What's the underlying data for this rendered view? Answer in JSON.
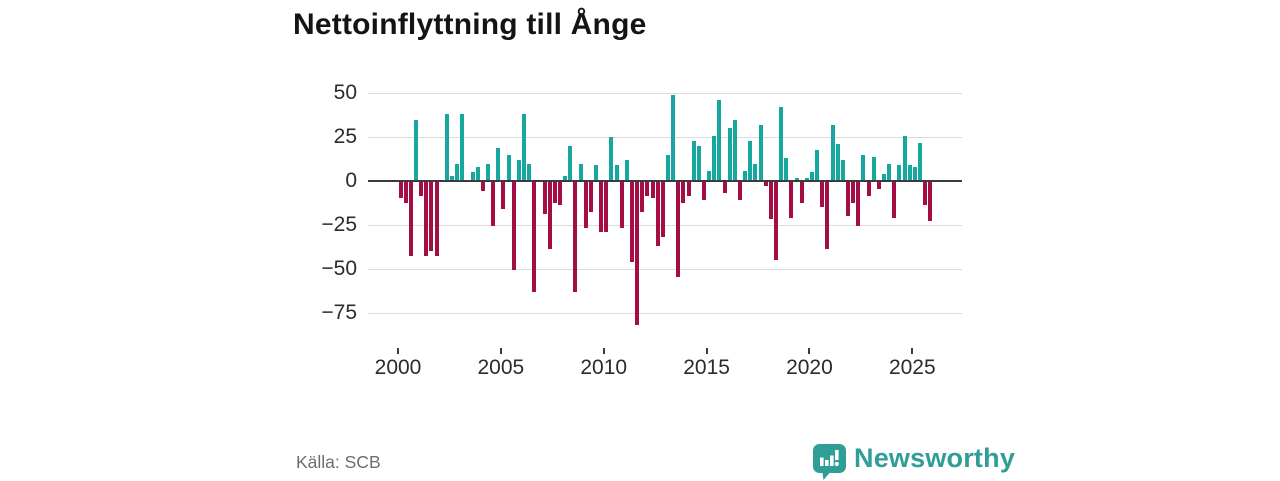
{
  "title": "Nettoinflyttning till Ånge",
  "source": "Källa: SCB",
  "branding": {
    "logo_text": "Newsworthy",
    "logo_icon": "newsworthy-speech-bubble-bar-chart-icon"
  },
  "colors": {
    "positive": "#16A79E",
    "negative": "#A50D45",
    "grid": "#DBDBDB",
    "zero_line": "#3B3B3B",
    "title_text": "#141414",
    "axis_text": "#2B2B2B",
    "source_text": "#6E6E6E",
    "brand": "#2F9E96"
  },
  "chart_data": {
    "type": "bar",
    "title": "Nettoinflyttning till Ånge",
    "frequency": "quarterly",
    "grid": true,
    "legend": false,
    "ylim": [
      -90,
      55
    ],
    "x_axis": {
      "tick_labels": [
        "2000",
        "2005",
        "2010",
        "2015",
        "2020",
        "2025"
      ]
    },
    "y_axis": {
      "ticks": [
        {
          "label": "50",
          "value": 50
        },
        {
          "label": "25",
          "value": 25
        },
        {
          "label": "0",
          "value": 0
        },
        {
          "label": "−25",
          "value": -25
        },
        {
          "label": "−50",
          "value": -50
        },
        {
          "label": "−75",
          "value": -75
        }
      ]
    },
    "series": [
      {
        "year": 2000,
        "q": [
          -9,
          -12,
          -42,
          35
        ]
      },
      {
        "year": 2001,
        "q": [
          -8,
          -42,
          -39,
          -42
        ]
      },
      {
        "year": 2002,
        "q": [
          0,
          38,
          3,
          10
        ]
      },
      {
        "year": 2003,
        "q": [
          38,
          0,
          5,
          8
        ]
      },
      {
        "year": 2004,
        "q": [
          -5,
          10,
          -25,
          19
        ]
      },
      {
        "year": 2005,
        "q": [
          -15,
          15,
          -50,
          12
        ]
      },
      {
        "year": 2006,
        "q": [
          38,
          10,
          -62,
          1
        ]
      },
      {
        "year": 2007,
        "q": [
          -18,
          -38,
          -12,
          -13
        ]
      },
      {
        "year": 2008,
        "q": [
          3,
          20,
          -62,
          10
        ]
      },
      {
        "year": 2009,
        "q": [
          -26,
          -17,
          9,
          -28
        ]
      },
      {
        "year": 2010,
        "q": [
          -28,
          25,
          9,
          -26
        ]
      },
      {
        "year": 2011,
        "q": [
          12,
          -45,
          -81,
          -17
        ]
      },
      {
        "year": 2012,
        "q": [
          -8,
          -9,
          -36,
          -31
        ]
      },
      {
        "year": 2013,
        "q": [
          15,
          49,
          -54,
          -12
        ]
      },
      {
        "year": 2014,
        "q": [
          -8,
          23,
          20,
          -10
        ]
      },
      {
        "year": 2015,
        "q": [
          6,
          26,
          46,
          -6
        ]
      },
      {
        "year": 2016,
        "q": [
          30,
          35,
          -10,
          6
        ]
      },
      {
        "year": 2017,
        "q": [
          23,
          10,
          32,
          -2
        ]
      },
      {
        "year": 2018,
        "q": [
          -21,
          -44,
          42,
          13
        ]
      },
      {
        "year": 2019,
        "q": [
          -20,
          2,
          -12,
          2
        ]
      },
      {
        "year": 2020,
        "q": [
          5,
          18,
          -14,
          -38
        ]
      },
      {
        "year": 2021,
        "q": [
          32,
          21,
          12,
          -19
        ]
      },
      {
        "year": 2022,
        "q": [
          -12,
          -25,
          15,
          -8
        ]
      },
      {
        "year": 2023,
        "q": [
          14,
          -4,
          4,
          10
        ]
      },
      {
        "year": 2024,
        "q": [
          -20,
          9,
          26,
          9
        ]
      },
      {
        "year": 2025,
        "q": [
          8,
          22,
          -13,
          -22
        ]
      }
    ]
  }
}
